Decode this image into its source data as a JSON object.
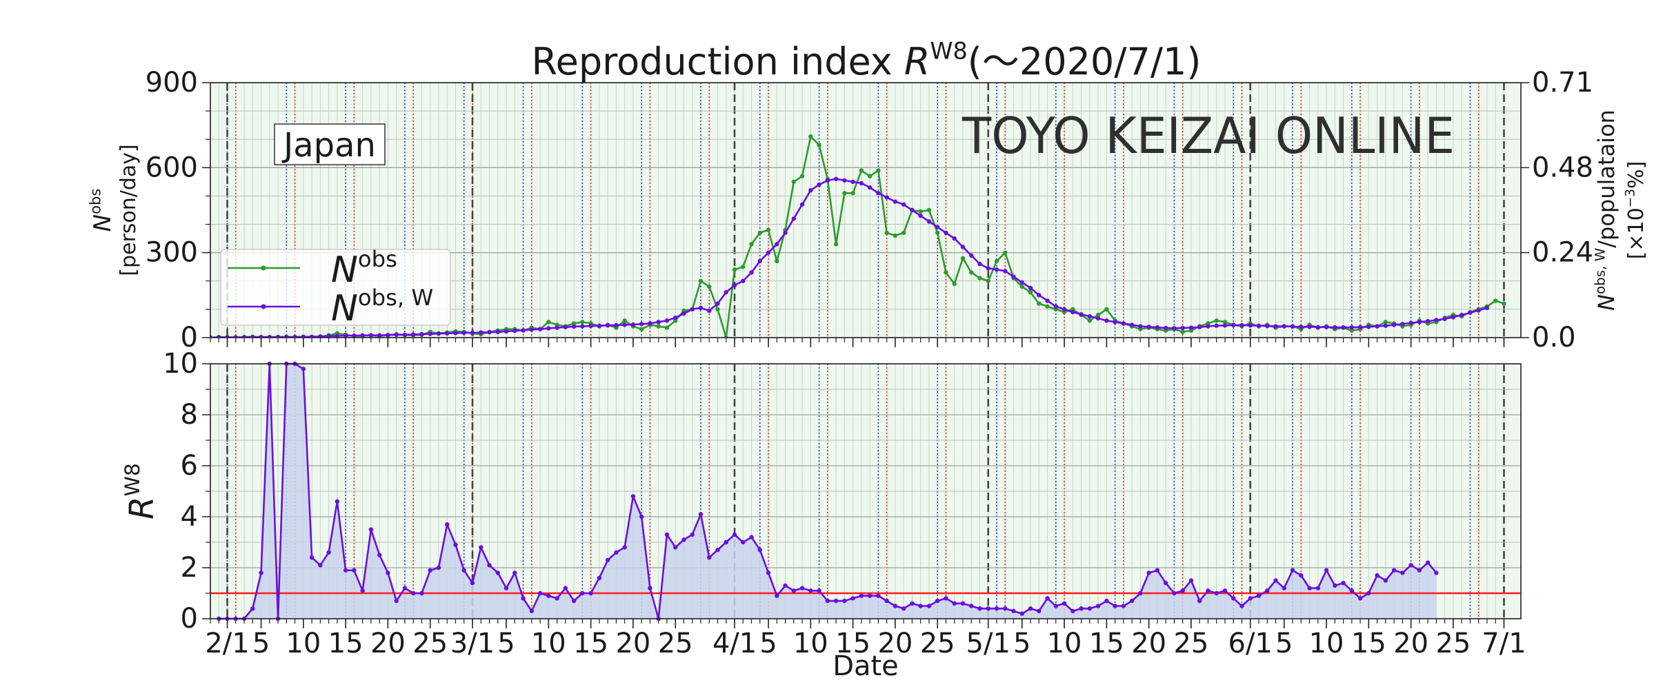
{
  "chart_data": [
    {
      "type": "line",
      "title": [
        "Reproduction index ",
        "R",
        "W8",
        "(～2020/7/1)"
      ],
      "x": [
        "1/30",
        "1/31",
        "2/1",
        "2/2",
        "2/3",
        "2/4",
        "2/5",
        "2/6",
        "2/7",
        "2/8",
        "2/9",
        "2/10",
        "2/11",
        "2/12",
        "2/13",
        "2/14",
        "2/15",
        "2/16",
        "2/17",
        "2/18",
        "2/19",
        "2/20",
        "2/21",
        "2/22",
        "2/23",
        "2/24",
        "2/25",
        "2/26",
        "2/27",
        "2/28",
        "2/29",
        "3/1",
        "3/2",
        "3/3",
        "3/4",
        "3/5",
        "3/6",
        "3/7",
        "3/8",
        "3/9",
        "3/10",
        "3/11",
        "3/12",
        "3/13",
        "3/14",
        "3/15",
        "3/16",
        "3/17",
        "3/18",
        "3/19",
        "3/20",
        "3/21",
        "3/22",
        "3/23",
        "3/24",
        "3/25",
        "3/26",
        "3/27",
        "3/28",
        "3/29",
        "3/30",
        "3/31",
        "4/1",
        "4/2",
        "4/3",
        "4/4",
        "4/5",
        "4/6",
        "4/7",
        "4/8",
        "4/9",
        "4/10",
        "4/11",
        "4/12",
        "4/13",
        "4/14",
        "4/15",
        "4/16",
        "4/17",
        "4/18",
        "4/19",
        "4/20",
        "4/21",
        "4/22",
        "4/23",
        "4/24",
        "4/25",
        "4/26",
        "4/27",
        "4/28",
        "4/29",
        "4/30",
        "5/1",
        "5/2",
        "5/3",
        "5/4",
        "5/5",
        "5/6",
        "5/7",
        "5/8",
        "5/9",
        "5/10",
        "5/11",
        "5/12",
        "5/13",
        "5/14",
        "5/15",
        "5/16",
        "5/17",
        "5/18",
        "5/19",
        "5/20",
        "5/21",
        "5/22",
        "5/23",
        "5/24",
        "5/25",
        "5/26",
        "5/27",
        "5/28",
        "5/29",
        "5/30",
        "5/31",
        "6/1",
        "6/2",
        "6/3",
        "6/4",
        "6/5",
        "6/6",
        "6/7",
        "6/8",
        "6/9",
        "6/10",
        "6/11",
        "6/12",
        "6/13",
        "6/14",
        "6/15",
        "6/16",
        "6/17",
        "6/18",
        "6/19",
        "6/20",
        "6/21",
        "6/22",
        "6/23",
        "6/24",
        "6/25",
        "6/26",
        "6/27",
        "6/28",
        "6/29",
        "6/30",
        "7/1"
      ],
      "series": [
        {
          "name": [
            "N",
            "obs"
          ],
          "color": "#2e9a2e",
          "values": [
            0,
            2,
            1,
            0,
            2,
            3,
            1,
            0,
            2,
            3,
            1,
            2,
            0,
            3,
            8,
            15,
            10,
            5,
            6,
            8,
            5,
            9,
            12,
            9,
            8,
            10,
            20,
            15,
            18,
            22,
            20,
            15,
            12,
            20,
            25,
            30,
            30,
            25,
            35,
            30,
            55,
            45,
            40,
            50,
            55,
            50,
            40,
            45,
            35,
            60,
            40,
            30,
            45,
            40,
            35,
            60,
            95,
            100,
            200,
            180,
            100,
            0,
            240,
            250,
            330,
            370,
            380,
            270,
            380,
            550,
            570,
            710,
            680,
            560,
            330,
            510,
            510,
            590,
            570,
            590,
            370,
            360,
            370,
            450,
            445,
            450,
            370,
            230,
            190,
            280,
            230,
            210,
            200,
            270,
            300,
            210,
            180,
            160,
            120,
            110,
            100,
            90,
            100,
            80,
            60,
            80,
            100,
            60,
            50,
            40,
            30,
            35,
            30,
            25,
            30,
            20,
            25,
            40,
            50,
            60,
            55,
            45,
            40,
            50,
            40,
            45,
            35,
            40,
            40,
            30,
            45,
            35,
            40,
            30,
            35,
            25,
            30,
            45,
            40,
            55,
            50,
            40,
            45,
            60,
            50,
            55,
            70,
            80,
            75,
            90,
            100,
            110,
            130,
            120
          ]
        },
        {
          "name": [
            "N",
            "obs, W"
          ],
          "color": "#6a0fe0",
          "values": [
            0,
            1,
            1,
            1,
            1,
            2,
            2,
            2,
            2,
            2,
            2,
            3,
            3,
            4,
            5,
            6,
            7,
            7,
            8,
            8,
            8,
            9,
            10,
            10,
            11,
            12,
            13,
            14,
            15,
            16,
            17,
            17,
            18,
            19,
            20,
            22,
            24,
            26,
            28,
            30,
            33,
            35,
            37,
            39,
            40,
            41,
            42,
            43,
            44,
            45,
            46,
            48,
            50,
            55,
            60,
            70,
            85,
            100,
            105,
            95,
            120,
            160,
            185,
            200,
            230,
            270,
            300,
            330,
            370,
            420,
            470,
            520,
            540,
            555,
            560,
            555,
            550,
            545,
            530,
            510,
            495,
            480,
            470,
            450,
            430,
            410,
            390,
            370,
            350,
            320,
            290,
            260,
            245,
            240,
            235,
            215,
            195,
            175,
            150,
            130,
            110,
            100,
            90,
            82,
            75,
            68,
            60,
            55,
            50,
            45,
            40,
            38,
            36,
            34,
            33,
            34,
            35,
            37,
            40,
            42,
            43,
            44,
            44,
            43,
            42,
            41,
            40,
            40,
            39,
            38,
            38,
            37,
            37,
            36,
            36,
            36,
            37,
            38,
            40,
            42,
            45,
            48,
            52,
            55,
            58,
            62,
            66,
            72,
            80,
            88,
            96,
            105,
            null,
            null
          ]
        }
      ],
      "ylim": [
        0,
        900
      ],
      "yticks": [
        0,
        300,
        600,
        900
      ],
      "yminorticks": [
        100,
        200,
        400,
        500,
        700,
        800
      ],
      "y2lim": [
        0,
        0.7125
      ],
      "y2ticks": [
        {
          "value": 0,
          "label": "0.0"
        },
        {
          "value": 0.2375,
          "label": "0.24"
        },
        {
          "value": 0.475,
          "label": "0.48"
        },
        {
          "value": 0.7125,
          "label": "0.71"
        }
      ],
      "ylabel": [
        "N",
        "obs",
        "[person/day]"
      ],
      "y2label": [
        "N",
        "obs, W",
        "/populataion",
        "[×10",
        "−3",
        "%]"
      ],
      "annotation": "Japan",
      "watermark": "TOYO KEIZAI ONLINE",
      "legend": "lower left",
      "grid": true
    },
    {
      "type": "area",
      "x": [
        "1/30",
        "1/31",
        "2/1",
        "2/2",
        "2/3",
        "2/4",
        "2/5",
        "2/6",
        "2/7",
        "2/8",
        "2/9",
        "2/10",
        "2/11",
        "2/12",
        "2/13",
        "2/14",
        "2/15",
        "2/16",
        "2/17",
        "2/18",
        "2/19",
        "2/20",
        "2/21",
        "2/22",
        "2/23",
        "2/24",
        "2/25",
        "2/26",
        "2/27",
        "2/28",
        "2/29",
        "3/1",
        "3/2",
        "3/3",
        "3/4",
        "3/5",
        "3/6",
        "3/7",
        "3/8",
        "3/9",
        "3/10",
        "3/11",
        "3/12",
        "3/13",
        "3/14",
        "3/15",
        "3/16",
        "3/17",
        "3/18",
        "3/19",
        "3/20",
        "3/21",
        "3/22",
        "3/23",
        "3/24",
        "3/25",
        "3/26",
        "3/27",
        "3/28",
        "3/29",
        "3/30",
        "3/31",
        "4/1",
        "4/2",
        "4/3",
        "4/4",
        "4/5",
        "4/6",
        "4/7",
        "4/8",
        "4/9",
        "4/10",
        "4/11",
        "4/12",
        "4/13",
        "4/14",
        "4/15",
        "4/16",
        "4/17",
        "4/18",
        "4/19",
        "4/20",
        "4/21",
        "4/22",
        "4/23",
        "4/24",
        "4/25",
        "4/26",
        "4/27",
        "4/28",
        "4/29",
        "4/30",
        "5/1",
        "5/2",
        "5/3",
        "5/4",
        "5/5",
        "5/6",
        "5/7",
        "5/8",
        "5/9",
        "5/10",
        "5/11",
        "5/12",
        "5/13",
        "5/14",
        "5/15",
        "5/16",
        "5/17",
        "5/18",
        "5/19",
        "5/20",
        "5/21",
        "5/22",
        "5/23",
        "5/24",
        "5/25",
        "5/26",
        "5/27",
        "5/28",
        "5/29",
        "5/30",
        "5/31",
        "6/1",
        "6/2",
        "6/3",
        "6/4",
        "6/5",
        "6/6",
        "6/7",
        "6/8",
        "6/9",
        "6/10",
        "6/11",
        "6/12",
        "6/13",
        "6/14",
        "6/15",
        "6/16",
        "6/17",
        "6/18",
        "6/19",
        "6/20",
        "6/21",
        "6/22",
        "6/23",
        "6/24",
        "6/25",
        "6/26",
        "6/27",
        "6/28",
        "6/29",
        "6/30",
        "7/1"
      ],
      "series": [
        {
          "color": "#6a0fe0",
          "fill": "#c9d3ec",
          "values": [
            null,
            0,
            0,
            0,
            0,
            0.4,
            1.8,
            10,
            0,
            10,
            10,
            9.8,
            2.4,
            2.1,
            2.6,
            4.6,
            1.9,
            1.9,
            1.1,
            3.5,
            2.5,
            1.8,
            0.7,
            1.2,
            1.0,
            1.0,
            1.9,
            2.0,
            3.7,
            2.9,
            1.9,
            1.4,
            2.8,
            2.1,
            1.8,
            1.2,
            1.8,
            0.8,
            0.3,
            1.0,
            0.9,
            0.8,
            1.2,
            0.7,
            1.0,
            1.0,
            1.6,
            2.3,
            2.6,
            2.8,
            4.8,
            4.0,
            1.2,
            0,
            3.3,
            2.8,
            3.1,
            3.3,
            4.1,
            2.4,
            2.7,
            3.0,
            3.3,
            3.0,
            3.2,
            2.7,
            1.8,
            0.9,
            1.3,
            1.1,
            1.2,
            1.1,
            1.1,
            0.7,
            0.7,
            0.7,
            0.8,
            0.9,
            0.9,
            0.9,
            0.7,
            0.5,
            0.4,
            0.6,
            0.5,
            0.5,
            0.7,
            0.8,
            0.6,
            0.6,
            0.5,
            0.4,
            0.4,
            0.4,
            0.4,
            0.3,
            0.2,
            0.4,
            0.3,
            0.8,
            0.5,
            0.6,
            0.3,
            0.4,
            0.4,
            0.5,
            0.7,
            0.5,
            0.5,
            0.7,
            1.0,
            1.8,
            1.9,
            1.4,
            1.0,
            1.1,
            1.5,
            0.7,
            1.1,
            1.0,
            1.1,
            0.8,
            0.5,
            0.8,
            0.9,
            1.1,
            1.5,
            1.2,
            1.9,
            1.7,
            1.2,
            1.2,
            1.9,
            1.3,
            1.4,
            1.1,
            0.8,
            1.0,
            1.7,
            1.5,
            1.9,
            1.8,
            2.1,
            1.9,
            2.2,
            1.8,
            null,
            null,
            null,
            null,
            null,
            null,
            null,
            null
          ]
        }
      ],
      "hline": {
        "value": 1,
        "color": "#ff1a1a"
      },
      "ylim": [
        0,
        10
      ],
      "yticks": [
        0,
        2,
        4,
        6,
        8,
        10
      ],
      "yminorticks": [
        1,
        3,
        5,
        7,
        9
      ],
      "ylabel": [
        "R",
        "W8"
      ],
      "xlabel": "Date",
      "xticks": [
        "2/1",
        {
          "value": "2/5",
          "label": "5"
        },
        {
          "value": "2/10",
          "label": "10"
        },
        {
          "value": "2/15",
          "label": "15"
        },
        {
          "value": "2/20",
          "label": "20"
        },
        {
          "value": "2/25",
          "label": "25"
        },
        "3/1",
        {
          "value": "3/5",
          "label": "5"
        },
        {
          "value": "3/10",
          "label": "10"
        },
        {
          "value": "3/15",
          "label": "15"
        },
        {
          "value": "3/20",
          "label": "20"
        },
        {
          "value": "3/25",
          "label": "25"
        },
        "4/1",
        {
          "value": "4/5",
          "label": "5"
        },
        {
          "value": "4/10",
          "label": "10"
        },
        {
          "value": "4/15",
          "label": "15"
        },
        {
          "value": "4/20",
          "label": "20"
        },
        {
          "value": "4/25",
          "label": "25"
        },
        "5/1",
        {
          "value": "5/5",
          "label": "5"
        },
        {
          "value": "5/10",
          "label": "10"
        },
        {
          "value": "5/15",
          "label": "15"
        },
        {
          "value": "5/20",
          "label": "20"
        },
        {
          "value": "5/25",
          "label": "25"
        },
        "6/1",
        {
          "value": "6/5",
          "label": "5"
        },
        {
          "value": "6/10",
          "label": "10"
        },
        {
          "value": "6/15",
          "label": "15"
        },
        {
          "value": "6/20",
          "label": "20"
        },
        {
          "value": "6/25",
          "label": "25"
        },
        "7/1"
      ],
      "grid": true
    }
  ]
}
